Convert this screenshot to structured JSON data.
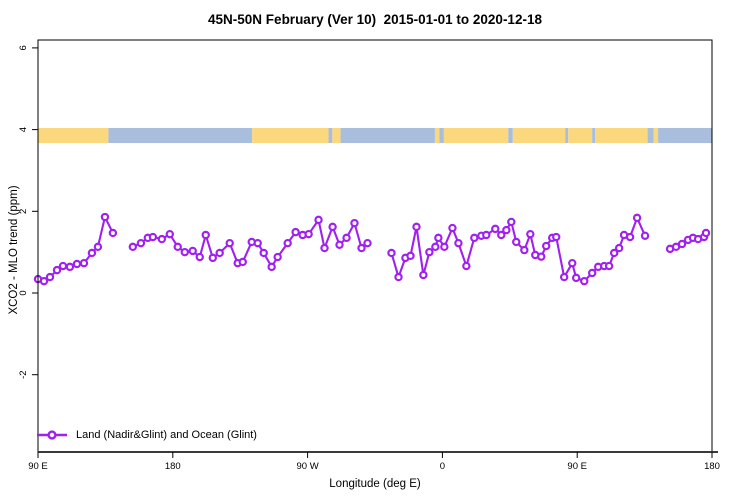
{
  "title": "45N-50N February (Ver 10)  2015-01-01 to 2020-12-18",
  "legend": {
    "label": "Land (Nadir&Glint) and Ocean (Glint)"
  },
  "colors": {
    "series": "#A020F0",
    "land_band": "#FBD77E",
    "ocean_band": "#A9BEDD",
    "axis": "#000000"
  },
  "chart_data": {
    "type": "line",
    "title": "45N-50N February (Ver 10)  2015-01-01 to 2020-12-18",
    "xlabel": "Longitude (deg E)",
    "ylabel": "XCO2 - MLO trend (ppm)",
    "ylim": [
      -3.9,
      6.2
    ],
    "x_axis_note": "x axis spans 450 degrees eastward starting at 90E (wraps past 180 and 0)",
    "x_span_deg": [
      0,
      450
    ],
    "x_ticks": [
      {
        "deg": 0,
        "label": "90 E"
      },
      {
        "deg": 90,
        "label": "180"
      },
      {
        "deg": 180,
        "label": "90 W"
      },
      {
        "deg": 270,
        "label": "0"
      },
      {
        "deg": 360,
        "label": "90 E"
      },
      {
        "deg": 450,
        "label": "180"
      }
    ],
    "y_ticks": [
      {
        "value": -2,
        "label": "-2"
      },
      {
        "value": 0,
        "label": "0"
      },
      {
        "value": 2,
        "label": "2"
      },
      {
        "value": 4,
        "label": "4"
      },
      {
        "value": 6,
        "label": "6"
      }
    ],
    "grid": false,
    "legend_position": "bottom-left inside plot",
    "surface_band": {
      "y_from": 3.67,
      "y_to": 4.04,
      "segments": [
        {
          "from": 0,
          "to": 47,
          "type": "land"
        },
        {
          "from": 47,
          "to": 143,
          "type": "ocean"
        },
        {
          "from": 143,
          "to": 194,
          "type": "land"
        },
        {
          "from": 194,
          "to": 196.5,
          "type": "ocean"
        },
        {
          "from": 196.5,
          "to": 202,
          "type": "land"
        },
        {
          "from": 202,
          "to": 265,
          "type": "ocean"
        },
        {
          "from": 265,
          "to": 268,
          "type": "land"
        },
        {
          "from": 268,
          "to": 271,
          "type": "ocean"
        },
        {
          "from": 271,
          "to": 314,
          "type": "land"
        },
        {
          "from": 314,
          "to": 317,
          "type": "ocean"
        },
        {
          "from": 317,
          "to": 352,
          "type": "land"
        },
        {
          "from": 352,
          "to": 354,
          "type": "ocean"
        },
        {
          "from": 354,
          "to": 370,
          "type": "land"
        },
        {
          "from": 370,
          "to": 372,
          "type": "ocean"
        },
        {
          "from": 372,
          "to": 407,
          "type": "land"
        },
        {
          "from": 407,
          "to": 411,
          "type": "ocean"
        },
        {
          "from": 411,
          "to": 414,
          "type": "land"
        },
        {
          "from": 414,
          "to": 450,
          "type": "ocean"
        }
      ]
    },
    "series": [
      {
        "name": "Land (Nadir&Glint) and Ocean (Glint)",
        "color": "#A020F0",
        "marker": "open-circle",
        "segments": [
          [
            [
              0,
              0.34
            ],
            [
              4,
              0.29
            ],
            [
              8,
              0.39
            ],
            [
              12.7,
              0.56
            ],
            [
              16.7,
              0.66
            ],
            [
              21.3,
              0.64
            ],
            [
              26,
              0.71
            ],
            [
              30.7,
              0.73
            ],
            [
              36,
              0.98
            ],
            [
              40,
              1.13
            ],
            [
              44.7,
              1.86
            ],
            [
              50,
              1.47
            ]
          ],
          [
            [
              63.3,
              1.13
            ],
            [
              68.7,
              1.22
            ],
            [
              73.3,
              1.35
            ],
            [
              76.7,
              1.37
            ],
            [
              82.7,
              1.32
            ],
            [
              88,
              1.44
            ],
            [
              93.3,
              1.13
            ],
            [
              98,
              1.0
            ],
            [
              103.3,
              1.03
            ],
            [
              108,
              0.88
            ],
            [
              112,
              1.42
            ],
            [
              116.7,
              0.86
            ],
            [
              121.3,
              0.98
            ],
            [
              128,
              1.22
            ],
            [
              133.3,
              0.73
            ],
            [
              136.7,
              0.76
            ],
            [
              142.7,
              1.25
            ],
            [
              146.7,
              1.22
            ],
            [
              150.7,
              0.98
            ],
            [
              156,
              0.64
            ],
            [
              160,
              0.88
            ],
            [
              166.7,
              1.22
            ],
            [
              172,
              1.49
            ],
            [
              176.7,
              1.42
            ],
            [
              180.7,
              1.44
            ],
            [
              187.3,
              1.79
            ],
            [
              191.3,
              1.1
            ],
            [
              196.7,
              1.62
            ],
            [
              201.3,
              1.18
            ],
            [
              206,
              1.35
            ],
            [
              211.3,
              1.71
            ],
            [
              216,
              1.1
            ],
            [
              220,
              1.22
            ]
          ],
          [
            [
              236,
              0.98
            ],
            [
              240.7,
              0.39
            ],
            [
              245.3,
              0.86
            ],
            [
              248.7,
              0.91
            ],
            [
              252.7,
              1.62
            ],
            [
              257.3,
              0.44
            ],
            [
              261.3,
              1.0
            ],
            [
              265.3,
              1.13
            ],
            [
              267.3,
              1.35
            ],
            [
              271.3,
              1.13
            ],
            [
              276.7,
              1.59
            ],
            [
              280.7,
              1.22
            ],
            [
              286,
              0.66
            ],
            [
              291.3,
              1.35
            ],
            [
              296,
              1.4
            ],
            [
              299.3,
              1.42
            ],
            [
              305.3,
              1.57
            ],
            [
              309.3,
              1.42
            ],
            [
              312.7,
              1.54
            ],
            [
              316,
              1.74
            ],
            [
              319.3,
              1.25
            ],
            [
              324.7,
              1.05
            ],
            [
              328.7,
              1.44
            ],
            [
              332,
              0.93
            ],
            [
              336,
              0.89
            ],
            [
              339.3,
              1.15
            ],
            [
              343.3,
              1.35
            ],
            [
              346,
              1.37
            ],
            [
              351.3,
              0.39
            ],
            [
              356.7,
              0.73
            ],
            [
              359.3,
              0.37
            ],
            [
              364.7,
              0.29
            ],
            [
              370,
              0.49
            ],
            [
              374,
              0.64
            ],
            [
              378,
              0.66
            ],
            [
              381.3,
              0.66
            ],
            [
              384.7,
              0.98
            ],
            [
              388,
              1.1
            ],
            [
              391.3,
              1.42
            ],
            [
              395.3,
              1.37
            ],
            [
              400,
              1.84
            ],
            [
              405.3,
              1.4
            ]
          ],
          [
            [
              422,
              1.08
            ],
            [
              426,
              1.13
            ],
            [
              430,
              1.2
            ],
            [
              434,
              1.3
            ],
            [
              437.3,
              1.35
            ],
            [
              440.7,
              1.32
            ],
            [
              444.7,
              1.37
            ],
            [
              446,
              1.47
            ]
          ]
        ]
      }
    ]
  }
}
